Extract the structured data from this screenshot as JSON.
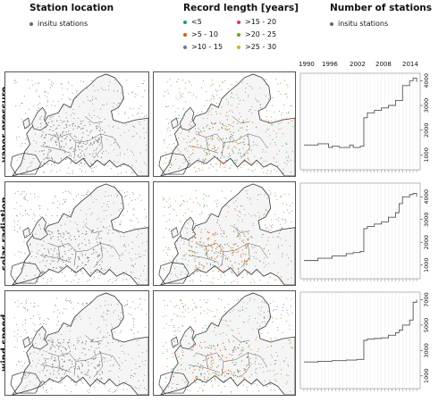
{
  "headers": {
    "station_location": "Station location",
    "record_length": "Record length [years]",
    "number_of_stations": "Number of stations"
  },
  "legend_station": {
    "label": "insitu stations",
    "color": "#666666"
  },
  "legend_record": [
    {
      "label": "<5",
      "color": "#1f9e73"
    },
    {
      "label": ">15 - 20",
      "color": "#e7298a"
    },
    {
      "label": ">5 - 10",
      "color": "#d95f02"
    },
    {
      "label": ">20 - 25",
      "color": "#66a61e"
    },
    {
      "label": ">10 - 15",
      "color": "#7570b3"
    },
    {
      "label": ">25 - 30",
      "color": "#e6ab02"
    }
  ],
  "legend_count": {
    "label": "insitu stations",
    "color": "#666666"
  },
  "rows": [
    {
      "label": "vapor pressure"
    },
    {
      "label": "solar radiation"
    },
    {
      "label": "wind speed"
    }
  ],
  "chart_data": [
    {
      "type": "line",
      "title": "vapor pressure",
      "year_labels": [
        "1990",
        "1996",
        "2002",
        "2008",
        "2014"
      ],
      "x": [
        1986,
        1990,
        1993,
        1994,
        1996,
        1999,
        2000,
        2002,
        2003,
        2004,
        2006,
        2008,
        2010,
        2012,
        2014,
        2016,
        2017,
        2018
      ],
      "y": [
        1400,
        1450,
        1300,
        1350,
        1300,
        1400,
        1300,
        1350,
        2500,
        2700,
        2800,
        2900,
        3000,
        3200,
        3800,
        4000,
        4100,
        3950
      ],
      "ylim": [
        400,
        4300
      ],
      "yticks": [
        1000,
        2000,
        3000,
        4000
      ],
      "grid": true
    },
    {
      "type": "line",
      "title": "solar radiation",
      "year_labels": [],
      "x": [
        1986,
        1990,
        1994,
        1998,
        2000,
        2002,
        2003,
        2004,
        2006,
        2008,
        2010,
        2012,
        2013,
        2014,
        2016,
        2017,
        2018
      ],
      "y": [
        1200,
        1300,
        1400,
        1500,
        1550,
        1600,
        2600,
        2700,
        2800,
        2900,
        3100,
        3300,
        3700,
        4000,
        4100,
        4150,
        4000
      ],
      "ylim": [
        400,
        4600
      ],
      "yticks": [
        1000,
        2000,
        3000,
        4000
      ],
      "grid": true
    },
    {
      "type": "line",
      "title": "wind speed",
      "year_labels": [],
      "x": [
        1986,
        1990,
        1994,
        1998,
        2001,
        2002,
        2003,
        2004,
        2006,
        2008,
        2010,
        2012,
        2013,
        2014,
        2016,
        2017,
        2018
      ],
      "y": [
        2100,
        2150,
        2200,
        2250,
        2300,
        2300,
        3800,
        3900,
        3950,
        4000,
        4200,
        4400,
        4600,
        5000,
        5400,
        6800,
        7000
      ],
      "ylim": [
        0,
        7600
      ],
      "yticks": [
        1000,
        3000,
        5000,
        7000
      ],
      "grid": true
    }
  ]
}
